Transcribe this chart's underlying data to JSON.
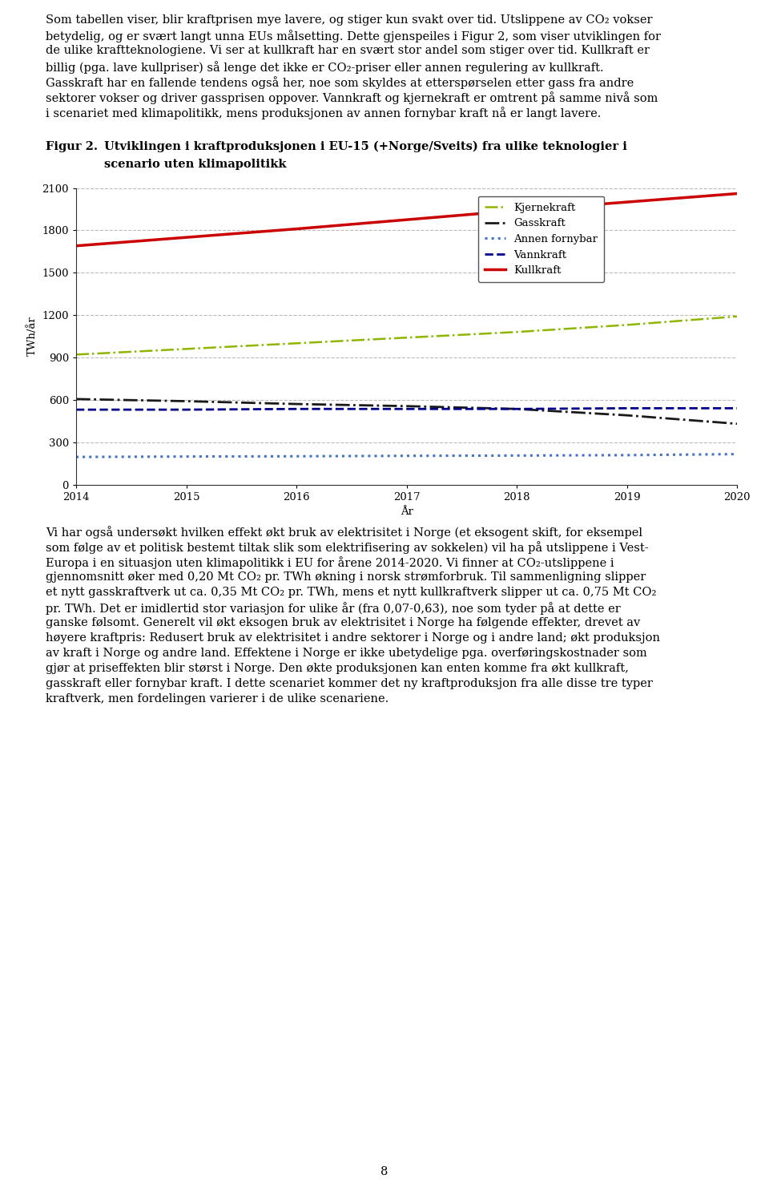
{
  "page_width": 9.6,
  "page_height": 14.81,
  "top_lines": [
    "Som tabellen viser, blir kraftprisen mye lavere, og stiger kun svakt over tid. Utslippene av CO₂ vokser",
    "betydelig, og er svært langt unna EUs målsetting. Dette gjenspeiles i Figur 2, som viser utviklingen for",
    "de ulike kraftteknologiene. Vi ser at kullkraft har en svært stor andel som stiger over tid. Kullkraft er",
    "billig (pga. lave kullpriser) så lenge det ikke er CO₂-priser eller annen regulering av kullkraft.",
    "Gasskraft har en fallende tendens også her, noe som skyldes at etterspørselen etter gass fra andre",
    "sektorer vokser og driver gassprisen oppover. Vannkraft og kjernekraft er omtrent på samme nivå som",
    "i scenariet med klimapolitikk, mens produksjonen av annen fornybar kraft nå er langt lavere."
  ],
  "figure_label": "Figur 2.",
  "figure_title_line1": "Utviklingen i kraftproduksjonen i EU-15 (+Norge/Sveits) fra ulike teknologier i",
  "figure_title_line2": "scenario uten klimapolitikk",
  "years": [
    2014,
    2015,
    2016,
    2017,
    2018,
    2019,
    2020
  ],
  "kjernekraft": [
    920,
    960,
    1000,
    1040,
    1080,
    1130,
    1190
  ],
  "gasskraft": [
    605,
    590,
    570,
    555,
    535,
    490,
    430
  ],
  "annen_fornybar": [
    195,
    198,
    200,
    203,
    205,
    208,
    215
  ],
  "vannkraft": [
    530,
    530,
    535,
    535,
    535,
    540,
    540
  ],
  "kullkraft": [
    1690,
    1750,
    1810,
    1875,
    1940,
    2000,
    2060
  ],
  "colors": {
    "kjernekraft": "#8DB600",
    "gasskraft": "#1a1a1a",
    "annen_fornybar": "#4472C4",
    "vannkraft": "#00008B",
    "kullkraft": "#CC0000"
  },
  "legend_labels": [
    "Kjernekraft",
    "Gasskraft",
    "Annen fornybar",
    "Vannkraft",
    "Kullkraft"
  ],
  "ylabel": "TWh/år",
  "xlabel": "År",
  "ylim": [
    0,
    2100
  ],
  "yticks": [
    0,
    300,
    600,
    900,
    1200,
    1500,
    1800,
    2100
  ],
  "xlim": [
    2014,
    2020
  ],
  "xticks": [
    2014,
    2015,
    2016,
    2017,
    2018,
    2019,
    2020
  ],
  "bottom_lines": [
    "Vi har også undersøkt hvilken effekt økt bruk av elektrisitet i Norge (et eksogent skift, for eksempel",
    "som følge av et politisk bestemt tiltak slik som elektrifisering av sokkelen) vil ha på utslippene i Vest-",
    "Europa i en situasjon uten klimapolitikk i EU for årene 2014-2020. Vi finner at CO₂-utslippene i",
    "gjennomsnitt øker med 0,20 Mt CO₂ pr. TWh økning i norsk strømforbruk. Til sammenligning slipper",
    "et nytt gasskraftverk ut ca. 0,35 Mt CO₂ pr. TWh, mens et nytt kullkraftverk slipper ut ca. 0,75 Mt CO₂",
    "pr. TWh. Det er imidlertid stor variasjon for ulike år (fra 0,07-0,63), noe som tyder på at dette er",
    "ganske følsomt. Generelt vil økt eksogen bruk av elektrisitet i Norge ha følgende effekter, drevet av",
    "høyere kraftpris: Redusert bruk av elektrisitet i andre sektorer i Norge og i andre land; økt produksjon",
    "av kraft i Norge og andre land. Effektene i Norge er ikke ubetydelige pga. overføringskostnader som",
    "gjør at priseffekten blir størst i Norge. Den økte produksjonen kan enten komme fra økt kullkraft,",
    "gasskraft eller fornybar kraft. I dette scenariet kommer det ny kraftproduksjon fra alle disse tre typer",
    "kraftverk, men fordelingen varierer i de ulike scenariene."
  ],
  "page_number": "8",
  "font_size_body": 10.5,
  "font_size_figure_label": 10.5,
  "font_size_axis": 9.5,
  "font_size_legend": 9.5
}
